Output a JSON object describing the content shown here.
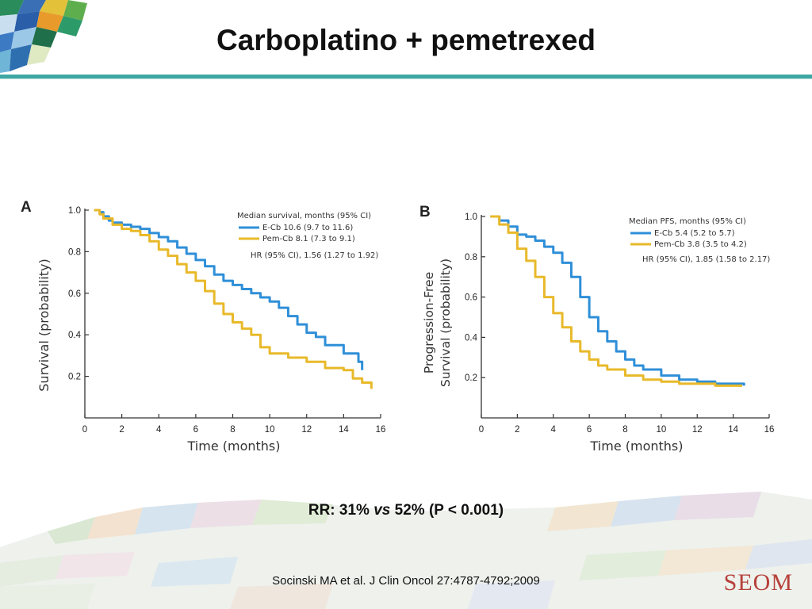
{
  "slide": {
    "title": "Carboplatino + pemetrexed",
    "rr_prefix": "RR: 31% ",
    "rr_vs": "vs",
    "rr_suffix": " 52% (P < 0.001)",
    "citation": "Socinski MA et al. J Clin Oncol 27:4787-4792;2009",
    "brand": "SEOM",
    "colors": {
      "accent_rule": "#3fa7a3",
      "brand": "#b7403a"
    }
  },
  "chart_data": [
    {
      "type": "line",
      "panel": "A",
      "ylabel": "Survival (probability)",
      "xlabel": "Time (months)",
      "xlim": [
        0,
        16
      ],
      "ylim": [
        0,
        1.0
      ],
      "xticks": [
        0,
        2,
        4,
        6,
        8,
        10,
        12,
        14,
        16
      ],
      "yticks": [
        0.2,
        0.4,
        0.6,
        0.8,
        1.0
      ],
      "legend_title": "Median survival, months (95% CI)",
      "hr_text": "HR (95% CI), 1.56 (1.27 to 1.92)",
      "series": [
        {
          "name": "E-Cb 10.6 (9.7 to 11.6)",
          "color": "#2f8fd8",
          "x": [
            0.5,
            0.8,
            1.0,
            1.3,
            1.5,
            2.0,
            2.5,
            3.0,
            3.5,
            4.0,
            4.5,
            5.0,
            5.5,
            6.0,
            6.5,
            7.0,
            7.5,
            8.0,
            8.5,
            9.0,
            9.5,
            10.0,
            10.5,
            11.0,
            11.5,
            12.0,
            12.5,
            13.0,
            14.0,
            14.8,
            14.8,
            15.0,
            15.0
          ],
          "y": [
            1.0,
            0.99,
            0.97,
            0.95,
            0.94,
            0.93,
            0.92,
            0.91,
            0.89,
            0.87,
            0.85,
            0.82,
            0.79,
            0.76,
            0.73,
            0.69,
            0.66,
            0.64,
            0.62,
            0.6,
            0.58,
            0.56,
            0.53,
            0.49,
            0.45,
            0.41,
            0.39,
            0.35,
            0.31,
            0.31,
            0.27,
            0.27,
            0.23
          ]
        },
        {
          "name": "Pem-Cb 8.1 (7.3 to 9.1)",
          "color": "#e8b92a",
          "x": [
            0.5,
            0.8,
            1.0,
            1.5,
            2.0,
            2.5,
            3.0,
            3.5,
            4.0,
            4.5,
            5.0,
            5.5,
            6.0,
            6.5,
            7.0,
            7.5,
            8.0,
            8.5,
            9.0,
            9.5,
            10.0,
            11.0,
            12.0,
            13.0,
            14.0,
            14.5,
            15.0,
            15.5
          ],
          "y": [
            1.0,
            0.98,
            0.96,
            0.93,
            0.91,
            0.9,
            0.88,
            0.85,
            0.81,
            0.78,
            0.74,
            0.7,
            0.66,
            0.61,
            0.55,
            0.5,
            0.46,
            0.43,
            0.4,
            0.34,
            0.31,
            0.29,
            0.27,
            0.24,
            0.23,
            0.19,
            0.17,
            0.14
          ]
        }
      ]
    },
    {
      "type": "line",
      "panel": "B",
      "ylabel": "Progression-Free Survival (probability)",
      "ylabel_lines": [
        "Progression-Free",
        "Survival (probability)"
      ],
      "xlabel": "Time (months)",
      "xlim": [
        0,
        16
      ],
      "ylim": [
        0,
        1.0
      ],
      "xticks": [
        0,
        2,
        4,
        6,
        8,
        10,
        12,
        14,
        16
      ],
      "yticks": [
        0.2,
        0.4,
        0.6,
        0.8,
        1.0
      ],
      "legend_title": "Median PFS, months (95% CI)",
      "hr_text": "HR (95% CI), 1.85 (1.58 to 2.17)",
      "series": [
        {
          "name": "E-Cb 5.4 (5.2 to 5.7)",
          "color": "#2f8fd8",
          "x": [
            0.5,
            1.0,
            1.5,
            2.0,
            2.5,
            3.0,
            3.5,
            4.0,
            4.5,
            5.0,
            5.5,
            6.0,
            6.5,
            7.0,
            7.5,
            8.0,
            8.5,
            9.0,
            10.0,
            11.0,
            12.0,
            13.0,
            14.0,
            14.6
          ],
          "y": [
            1.0,
            0.98,
            0.95,
            0.91,
            0.9,
            0.88,
            0.85,
            0.82,
            0.77,
            0.7,
            0.6,
            0.5,
            0.43,
            0.38,
            0.33,
            0.29,
            0.26,
            0.24,
            0.21,
            0.19,
            0.18,
            0.17,
            0.17,
            0.16
          ]
        },
        {
          "name": "Pem-Cb 3.8 (3.5 to 4.2)",
          "color": "#e8b92a",
          "x": [
            0.5,
            1.0,
            1.5,
            2.0,
            2.5,
            3.0,
            3.5,
            4.0,
            4.5,
            5.0,
            5.5,
            6.0,
            6.5,
            7.0,
            8.0,
            9.0,
            10.0,
            11.0,
            12.0,
            13.0,
            14.0,
            14.5
          ],
          "y": [
            1.0,
            0.96,
            0.92,
            0.84,
            0.78,
            0.7,
            0.6,
            0.52,
            0.45,
            0.38,
            0.33,
            0.29,
            0.26,
            0.24,
            0.21,
            0.19,
            0.18,
            0.17,
            0.17,
            0.16,
            0.16,
            0.16
          ]
        }
      ]
    }
  ]
}
